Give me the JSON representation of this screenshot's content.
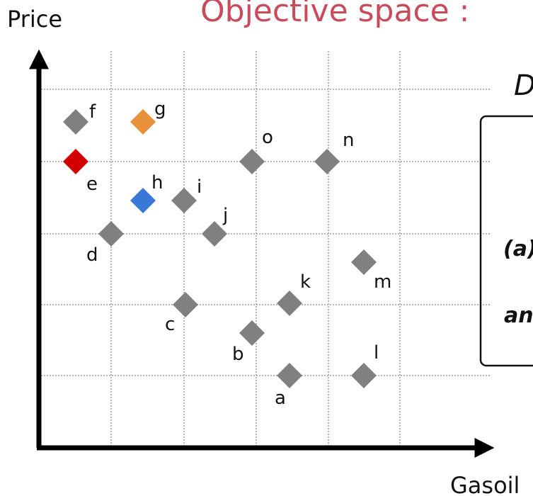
{
  "title": "Objective space :",
  "y_axis_label": "Price",
  "x_axis_label": "Gasoil",
  "side_text": "D",
  "box_lines": [
    "(a)",
    "an"
  ],
  "points": [
    {
      "label": "f",
      "color": "#808080"
    },
    {
      "label": "g",
      "color": "#e8903a"
    },
    {
      "label": "e",
      "color": "#d10000"
    },
    {
      "label": "h",
      "color": "#3a78d8"
    },
    {
      "label": "i",
      "color": "#808080"
    },
    {
      "label": "o",
      "color": "#808080"
    },
    {
      "label": "n",
      "color": "#808080"
    },
    {
      "label": "j",
      "color": "#808080"
    },
    {
      "label": "d",
      "color": "#808080"
    },
    {
      "label": "m",
      "color": "#808080"
    },
    {
      "label": "k",
      "color": "#808080"
    },
    {
      "label": "c",
      "color": "#808080"
    },
    {
      "label": "b",
      "color": "#808080"
    },
    {
      "label": "l",
      "color": "#808080"
    },
    {
      "label": "a",
      "color": "#808080"
    }
  ]
}
